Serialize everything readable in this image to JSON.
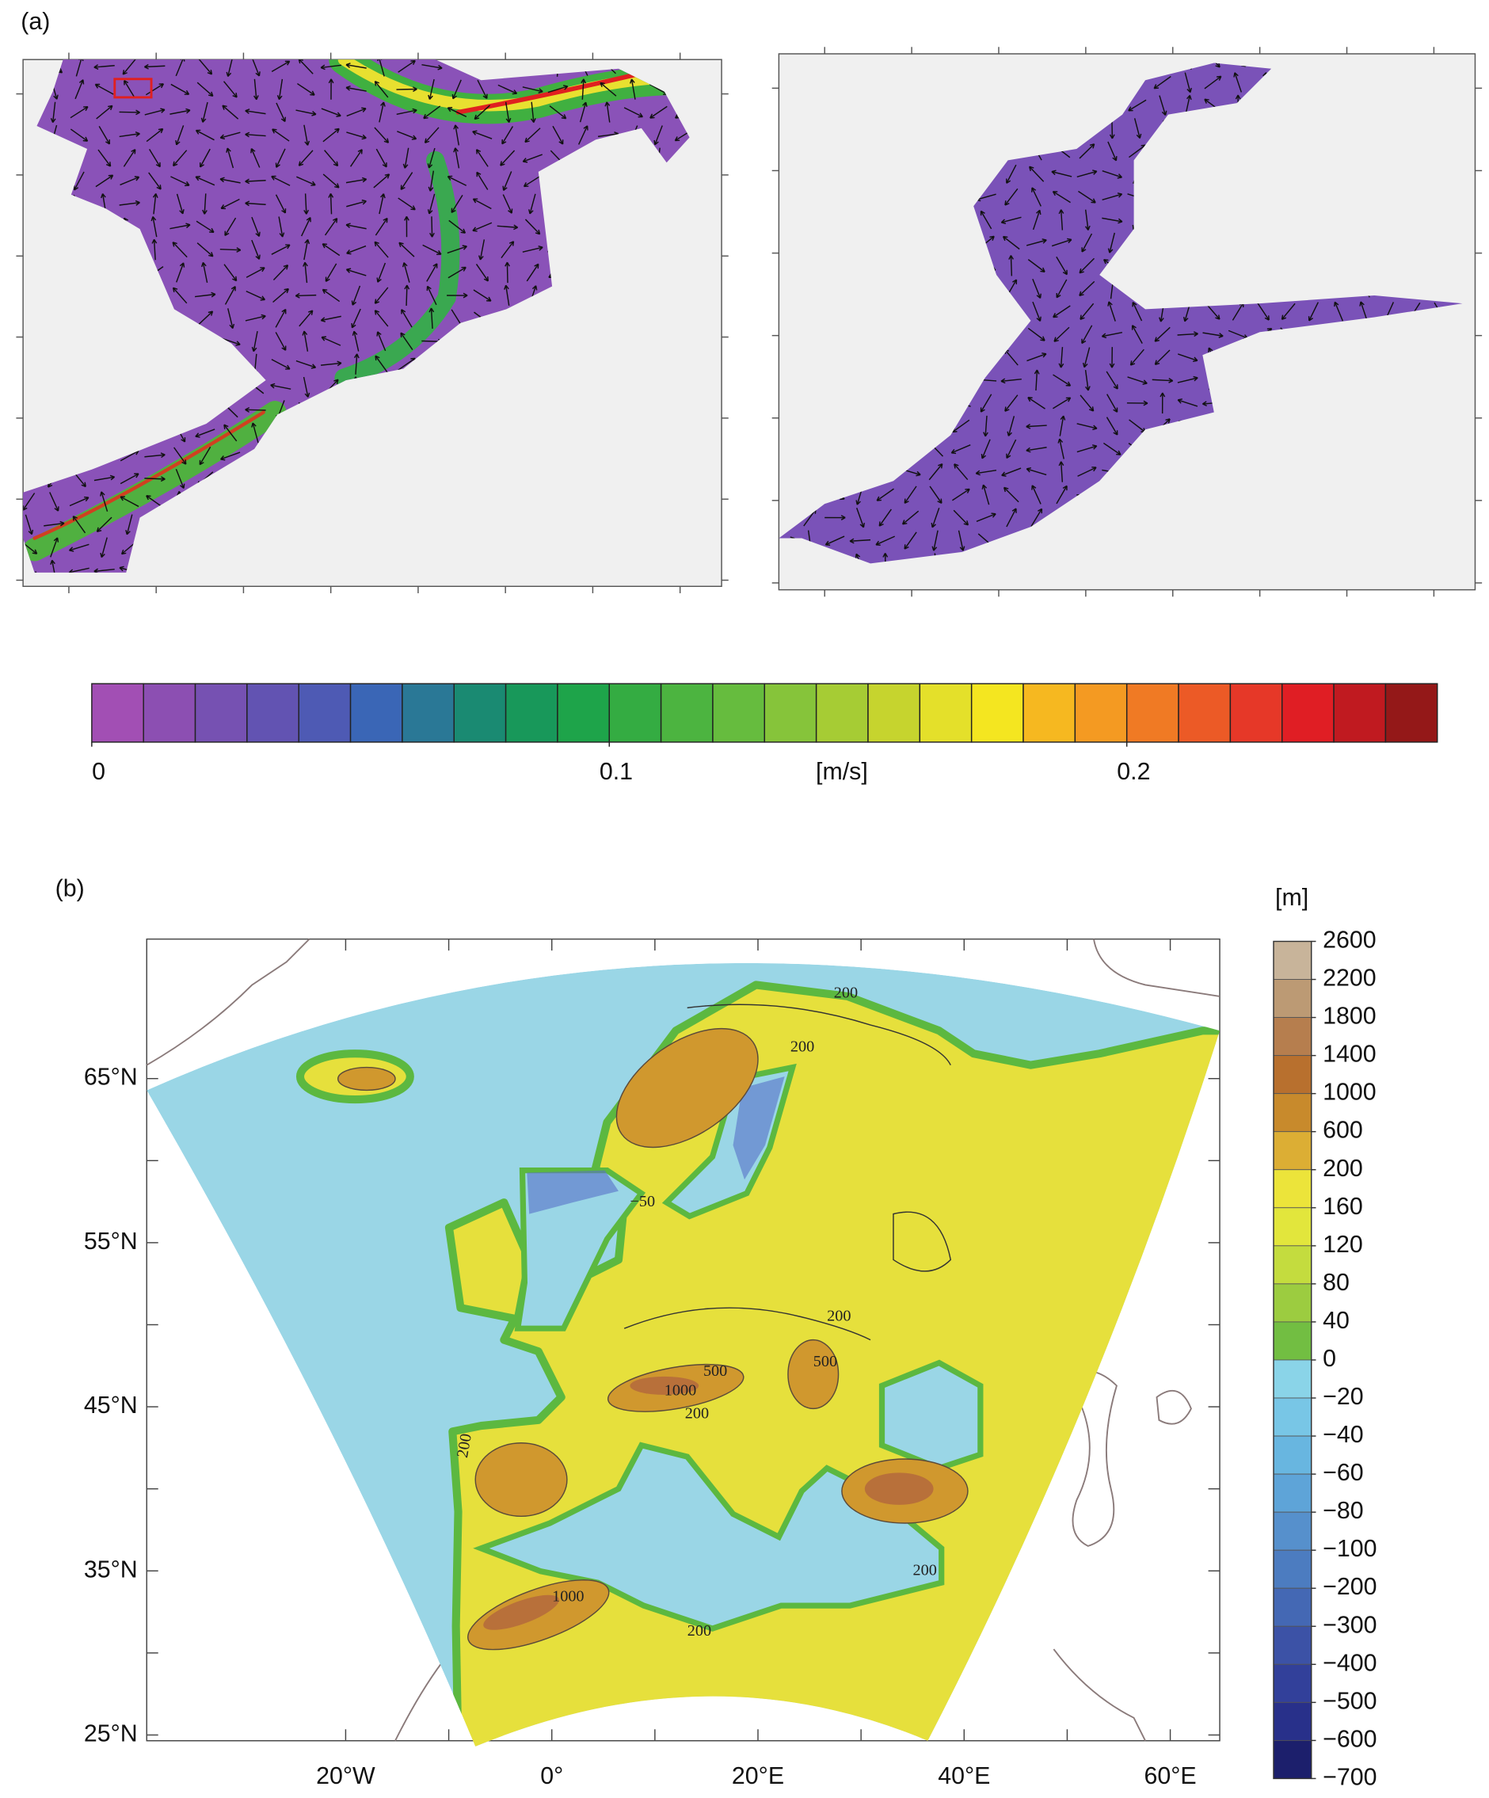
{
  "panel_a": {
    "label": "(a)",
    "colorbar": {
      "unit": "[m/s]",
      "lim": [
        0,
        0.26
      ],
      "ticks": [
        0,
        0.1,
        0.2
      ],
      "colors": [
        "#a24fb4",
        "#8c4fb2",
        "#7651b2",
        "#6253b2",
        "#4e5ab4",
        "#3a66b6",
        "#2a7896",
        "#1a8a72",
        "#18985a",
        "#1ea44a",
        "#34ac42",
        "#4cb440",
        "#66bc3e",
        "#86c43a",
        "#a6cc34",
        "#c6d42e",
        "#e4e02a",
        "#f4e620",
        "#f6b820",
        "#f49a22",
        "#f07a24",
        "#ec5a26",
        "#e63828",
        "#e01e24",
        "#c01a20",
        "#941818"
      ]
    }
  },
  "panel_b": {
    "label": "(b)",
    "xlim": [
      -39.3,
      64.8
    ],
    "ylim": [
      24.65,
      73.5
    ],
    "xticks": [
      {
        "value": -20,
        "label": "20°W"
      },
      {
        "value": 0,
        "label": "0°"
      },
      {
        "value": 20,
        "label": "20°E"
      },
      {
        "value": 40,
        "label": "40°E"
      },
      {
        "value": 60,
        "label": "60°E"
      }
    ],
    "yticks": [
      {
        "value": 65,
        "label": "65°N"
      },
      {
        "value": 55,
        "label": "55°N"
      },
      {
        "value": 45,
        "label": "45°N"
      },
      {
        "value": 35,
        "label": "35°N"
      },
      {
        "value": 25,
        "label": "25°N"
      }
    ],
    "contour_labels": [
      "200",
      "200",
      "200",
      "500",
      "1000",
      "500",
      "200",
      "200",
      "1000",
      "200",
      "200",
      "−50"
    ],
    "colorbar": {
      "unit": "[m]",
      "ticks": [
        2600,
        2200,
        1800,
        1400,
        1000,
        600,
        200,
        160,
        120,
        80,
        40,
        0,
        {
          "value": -20,
          "label": "−20"
        },
        {
          "value": -40,
          "label": "−40"
        },
        {
          "value": -60,
          "label": "−60"
        },
        {
          "value": -80,
          "label": "−80"
        },
        {
          "value": -100,
          "label": "−100"
        },
        {
          "value": -200,
          "label": "−200"
        },
        {
          "value": -300,
          "label": "−300"
        },
        {
          "value": -400,
          "label": "−400"
        },
        {
          "value": -500,
          "label": "−500"
        },
        {
          "value": -600,
          "label": "−600"
        },
        {
          "value": -700,
          "label": "−700"
        }
      ],
      "colors": [
        "#c8b49a",
        "#bc9a74",
        "#b67e4e",
        "#b8702e",
        "#c88a2c",
        "#dcae34",
        "#ece43a",
        "#e2e63c",
        "#c4dc3e",
        "#9ccc40",
        "#72be42",
        "#8ad4e8",
        "#78c6e6",
        "#68b6e0",
        "#5ea4d8",
        "#5690cc",
        "#4c7cc0",
        "#4468b4",
        "#3c52a6",
        "#32409a",
        "#28308a",
        "#1c1f6c"
      ]
    }
  }
}
